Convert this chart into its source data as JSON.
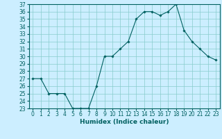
{
  "x": [
    0,
    1,
    2,
    3,
    4,
    5,
    6,
    7,
    8,
    9,
    10,
    11,
    12,
    13,
    14,
    15,
    16,
    17,
    18,
    19,
    20,
    21,
    22,
    23
  ],
  "y": [
    27,
    27,
    25,
    25,
    25,
    23,
    23,
    23,
    26,
    30,
    30,
    31,
    32,
    35,
    36,
    36,
    35.5,
    36,
    37,
    33.5,
    32,
    31,
    30,
    29.5
  ],
  "line_color": "#006060",
  "marker": "D",
  "marker_size": 1.8,
  "bg_color": "#cceeff",
  "grid_color": "#88cccc",
  "xlabel": "Humidex (Indice chaleur)",
  "ylim": [
    23,
    37
  ],
  "xlim": [
    -0.5,
    23.5
  ],
  "yticks": [
    23,
    24,
    25,
    26,
    27,
    28,
    29,
    30,
    31,
    32,
    33,
    34,
    35,
    36,
    37
  ],
  "xticks": [
    0,
    1,
    2,
    3,
    4,
    5,
    6,
    7,
    8,
    9,
    10,
    11,
    12,
    13,
    14,
    15,
    16,
    17,
    18,
    19,
    20,
    21,
    22,
    23
  ],
  "tick_color": "#006060",
  "label_fontsize": 6.5,
  "tick_fontsize": 5.5
}
